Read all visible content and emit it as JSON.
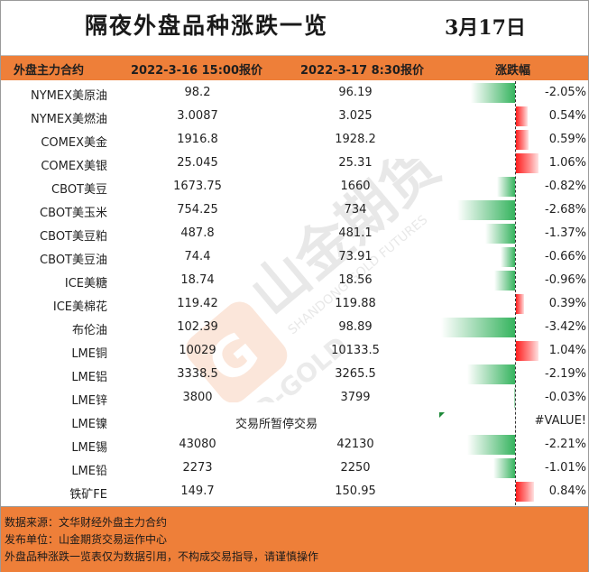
{
  "title": "隔夜外盘品种涨跌一览",
  "date": "3月17日",
  "headers": {
    "name": "外盘主力合约",
    "price1": "2022-3-16 15:00报价",
    "price2": "2022-3-17 8:30报价",
    "change": "涨跌幅"
  },
  "colors": {
    "header_bg": "#ee7f39",
    "up": "#ff1e1e",
    "down": "#35b45e"
  },
  "rows": [
    {
      "name": "NYMEX美原油",
      "p1": "98.2",
      "p2": "96.19",
      "pct": "-2.05%",
      "value": -2.05
    },
    {
      "name": "NYMEX美燃油",
      "p1": "3.0087",
      "p2": "3.025",
      "pct": "0.54%",
      "value": 0.54
    },
    {
      "name": "COMEX美金",
      "p1": "1916.8",
      "p2": "1928.2",
      "pct": "0.59%",
      "value": 0.59
    },
    {
      "name": "COMEX美银",
      "p1": "25.045",
      "p2": "25.31",
      "pct": "1.06%",
      "value": 1.06
    },
    {
      "name": "CBOT美豆",
      "p1": "1673.75",
      "p2": "1660",
      "pct": "-0.82%",
      "value": -0.82
    },
    {
      "name": "CBOT美玉米",
      "p1": "754.25",
      "p2": "734",
      "pct": "-2.68%",
      "value": -2.68
    },
    {
      "name": "CBOT美豆粕",
      "p1": "487.8",
      "p2": "481.1",
      "pct": "-1.37%",
      "value": -1.37
    },
    {
      "name": "CBOT美豆油",
      "p1": "74.4",
      "p2": "73.91",
      "pct": "-0.66%",
      "value": -0.66
    },
    {
      "name": "ICE美糖",
      "p1": "18.74",
      "p2": "18.56",
      "pct": "-0.96%",
      "value": -0.96
    },
    {
      "name": "ICE美棉花",
      "p1": "119.42",
      "p2": "119.88",
      "pct": "0.39%",
      "value": 0.39
    },
    {
      "name": "布伦油",
      "p1": "102.39",
      "p2": "98.89",
      "pct": "-3.42%",
      "value": -3.42
    },
    {
      "name": "LME铜",
      "p1": "10029",
      "p2": "10133.5",
      "pct": "1.04%",
      "value": 1.04
    },
    {
      "name": "LME铝",
      "p1": "3338.5",
      "p2": "3265.5",
      "pct": "-2.19%",
      "value": -2.19
    },
    {
      "name": "LME锌",
      "p1": "3800",
      "p2": "3799",
      "pct": "-0.03%",
      "value": -0.03
    },
    {
      "name": "LME镍",
      "merged": "交易所暂停交易",
      "pct": "#VALUE!",
      "value": null
    },
    {
      "name": "LME锡",
      "p1": "43080",
      "p2": "42130",
      "pct": "-2.21%",
      "value": -2.21
    },
    {
      "name": "LME铅",
      "p1": "2273",
      "p2": "2250",
      "pct": "-1.01%",
      "value": -1.01
    },
    {
      "name": "铁矿FE",
      "p1": "149.7",
      "p2": "150.95",
      "pct": "0.84%",
      "value": 0.84
    }
  ],
  "footer": {
    "source": "数据来源：文华财经外盘主力合约",
    "publisher": "发布单位：山金期货交易运作中心",
    "disclaimer": "外盘品种涨跌一览表仅为数据引用，不构成交易指导，请谨慎操作"
  },
  "watermark": {
    "brand_cn": "山金期货",
    "brand_en": "SHANDONG GOLD FUTURES",
    "logo_text": "SD-GOLD"
  }
}
